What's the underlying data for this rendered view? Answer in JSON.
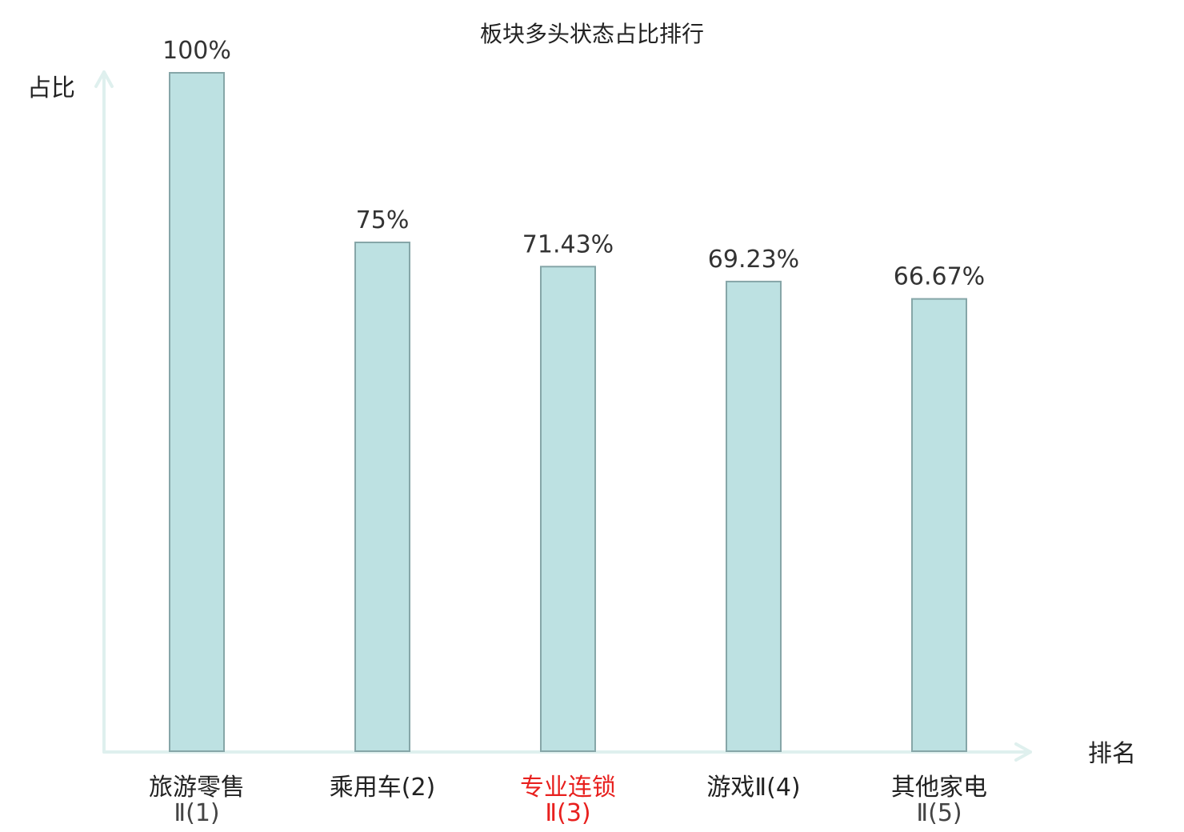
{
  "chart_data": {
    "type": "bar",
    "title": "板块多头状态占比排行",
    "ylabel": "占比",
    "xlabel": "排名",
    "ylim": [
      0,
      100
    ],
    "grid": false,
    "categories": [
      {
        "line1": "旅游零售",
        "line2": "Ⅱ(1)",
        "highlight": false
      },
      {
        "line1": "乘用车(2)",
        "line2": "",
        "highlight": false
      },
      {
        "line1": "专业连锁",
        "line2": "Ⅱ(3)",
        "highlight": true
      },
      {
        "line1": "游戏Ⅱ(4)",
        "line2": "",
        "highlight": false
      },
      {
        "line1": "其他家电",
        "line2": "Ⅱ(5)",
        "highlight": false
      }
    ],
    "values": [
      100,
      75,
      71.43,
      69.23,
      66.67
    ],
    "value_labels": [
      "100%",
      "75%",
      "71.43%",
      "69.23%",
      "66.67%"
    ],
    "colors": {
      "bar_fill": "#bde1e2",
      "bar_stroke": "#86a6a8",
      "axis": "#dff0ee",
      "highlight": "#e8201e"
    }
  }
}
